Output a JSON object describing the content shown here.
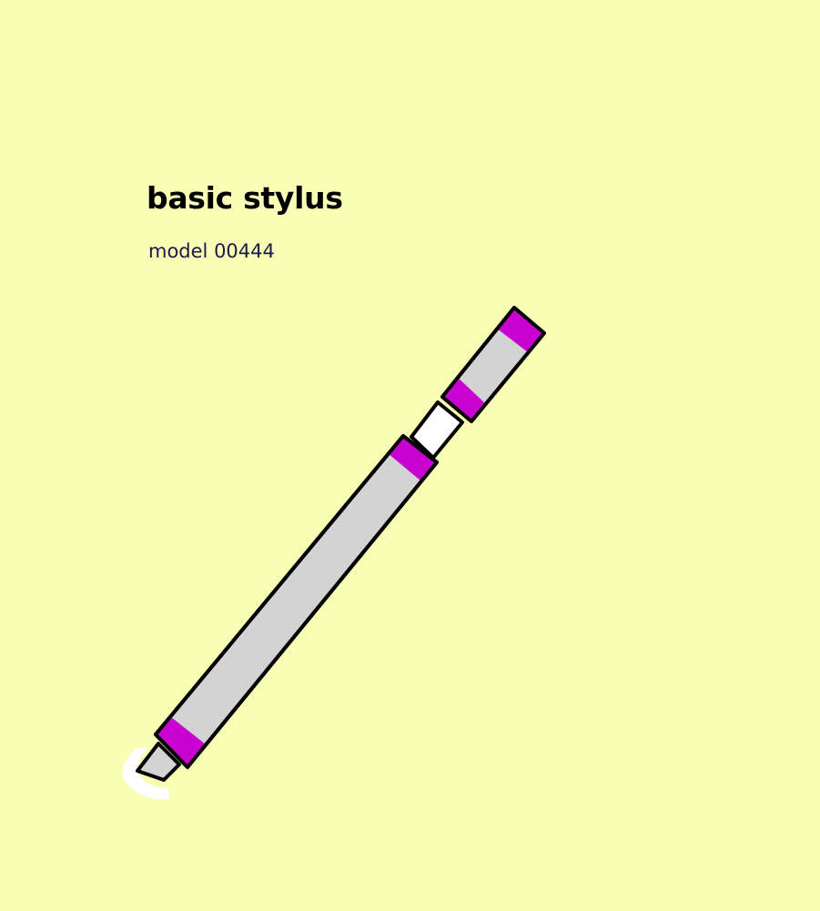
{
  "product": {
    "title": "basic stylus",
    "subtitle": "model 00444"
  },
  "colors": {
    "background": "#fafdb4",
    "title_text": "#000000",
    "subtitle_text": "#1a1a4a",
    "stylus_body": "#d3d3d3",
    "stylus_bands": "#c800d0",
    "stylus_gap": "#ffffff",
    "stylus_outline": "#000000"
  }
}
